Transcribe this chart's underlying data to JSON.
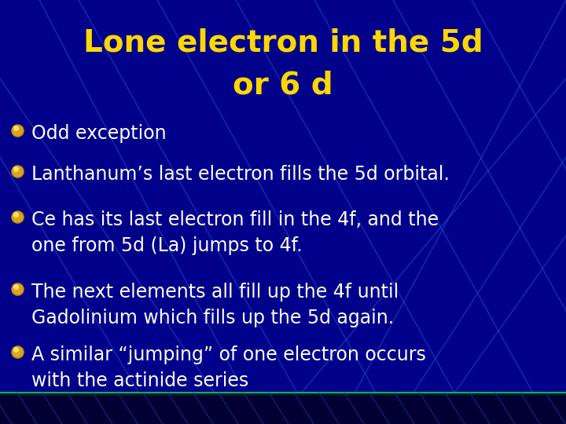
{
  "title_line1": "Lone electron in the 5d",
  "title_line2": "or 6 d",
  "title_color": "#FFD700",
  "title_fontsize": 28,
  "title_fontweight": "bold",
  "background_color": "#00008B",
  "bullet_color": "#FFFFFF",
  "bullet_fontsize": 17,
  "bullet_marker_color": "#DAA520",
  "bullets": [
    "Odd exception",
    "Lanthanum’s last electron fills the 5d orbital.",
    "Ce has its last electron fill in the 4f, and the\none from 5d (La) jumps to 4f.",
    "The next elements all fill up the 4f until\nGadolinium which fills up the 5d again.",
    "A similar “jumping” of one electron occurs\nwith the actinide series"
  ],
  "fig_width": 7.2,
  "fig_height": 5.4,
  "dpi": 100
}
